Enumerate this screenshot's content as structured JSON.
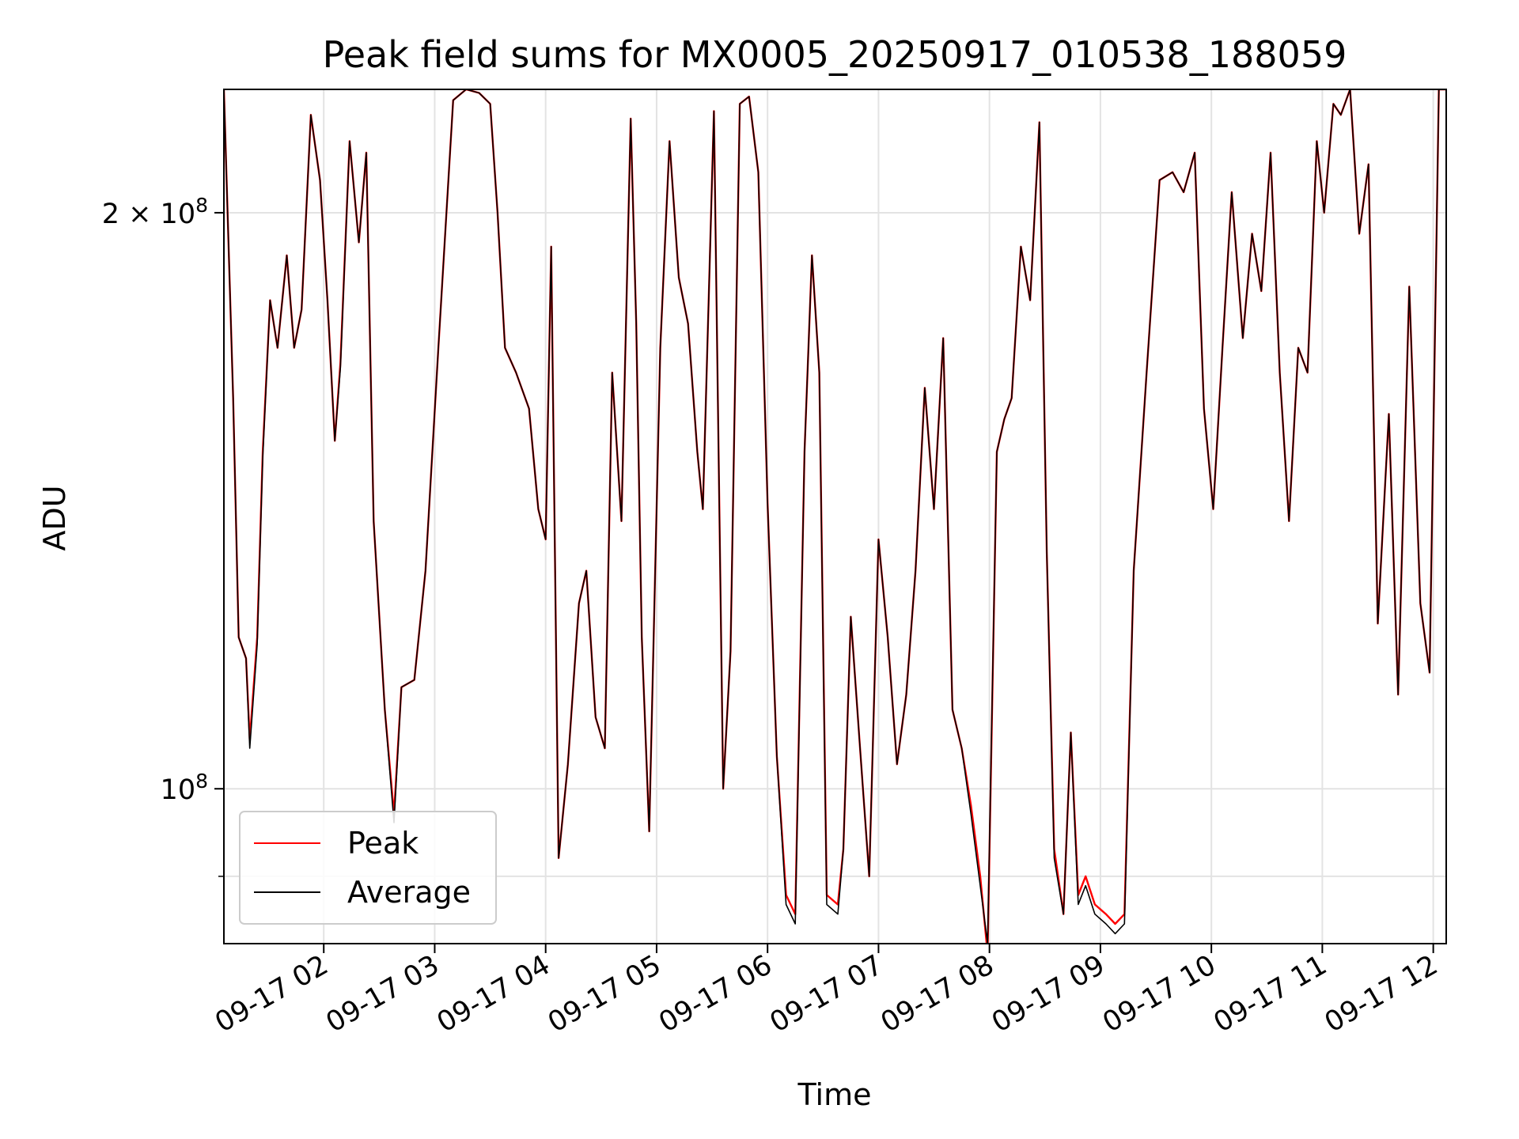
{
  "chart_data": {
    "type": "line",
    "title": "Peak field sums for MX0005_20250917_010538_188059",
    "xlabel": "Time",
    "ylabel": "ADU",
    "y_scale": "log",
    "xlim": [
      "09-17 01:06",
      "09-17 12:07"
    ],
    "ylim": [
      83000000,
      232000000
    ],
    "x_ticks": [
      "09-17 02",
      "09-17 03",
      "09-17 04",
      "09-17 05",
      "09-17 06",
      "09-17 07",
      "09-17 08",
      "09-17 09",
      "09-17 10",
      "09-17 11",
      "09-17 12"
    ],
    "y_ticks": [
      {
        "value": 100000000,
        "label": "10",
        "exp": "8"
      },
      {
        "value": 200000000,
        "label": "2 × 10",
        "exp": "8"
      }
    ],
    "grid": true,
    "legend_position": "lower-left",
    "series": [
      {
        "name": "Peak",
        "color": "#ff0000",
        "x": [
          "09-17 01:06",
          "09-17 01:11",
          "09-17 01:14",
          "09-17 01:18",
          "09-17 01:20",
          "09-17 01:24",
          "09-17 01:27",
          "09-17 01:31",
          "09-17 01:35",
          "09-17 01:40",
          "09-17 01:44",
          "09-17 01:48",
          "09-17 01:53",
          "09-17 01:58",
          "09-17 02:02",
          "09-17 02:06",
          "09-17 02:09",
          "09-17 02:14",
          "09-17 02:19",
          "09-17 02:23",
          "09-17 02:27",
          "09-17 02:33",
          "09-17 02:38",
          "09-17 02:42",
          "09-17 02:49",
          "09-17 02:55",
          "09-17 03:02",
          "09-17 03:10",
          "09-17 03:17",
          "09-17 03:24",
          "09-17 03:30",
          "09-17 03:34",
          "09-17 03:38",
          "09-17 03:44",
          "09-17 03:51",
          "09-17 03:56",
          "09-17 04:00",
          "09-17 04:03",
          "09-17 04:07",
          "09-17 04:12",
          "09-17 04:18",
          "09-17 04:22",
          "09-17 04:27",
          "09-17 04:32",
          "09-17 04:36",
          "09-17 04:41",
          "09-17 04:46",
          "09-17 04:49",
          "09-17 04:52",
          "09-17 04:56",
          "09-17 05:02",
          "09-17 05:07",
          "09-17 05:12",
          "09-17 05:17",
          "09-17 05:22",
          "09-17 05:25",
          "09-17 05:31",
          "09-17 05:36",
          "09-17 05:40",
          "09-17 05:45",
          "09-17 05:50",
          "09-17 05:55",
          "09-17 06:00",
          "09-17 06:05",
          "09-17 06:10",
          "09-17 06:15",
          "09-17 06:20",
          "09-17 06:24",
          "09-17 06:28",
          "09-17 06:32",
          "09-17 06:38",
          "09-17 06:41",
          "09-17 06:45",
          "09-17 06:50",
          "09-17 06:55",
          "09-17 07:00",
          "09-17 07:05",
          "09-17 07:10",
          "09-17 07:15",
          "09-17 07:20",
          "09-17 07:25",
          "09-17 07:30",
          "09-17 07:35",
          "09-17 07:40",
          "09-17 07:45",
          "09-17 07:50",
          "09-17 07:55",
          "09-17 07:59",
          "09-17 08:04",
          "09-17 08:08",
          "09-17 08:12",
          "09-17 08:17",
          "09-17 08:22",
          "09-17 08:27",
          "09-17 08:31",
          "09-17 08:35",
          "09-17 08:40",
          "09-17 08:44",
          "09-17 08:48",
          "09-17 08:52",
          "09-17 08:57",
          "09-17 09:03",
          "09-17 09:08",
          "09-17 09:13",
          "09-17 09:18",
          "09-17 09:25",
          "09-17 09:32",
          "09-17 09:39",
          "09-17 09:45",
          "09-17 09:51",
          "09-17 09:56",
          "09-17 10:01",
          "09-17 10:06",
          "09-17 10:11",
          "09-17 10:17",
          "09-17 10:22",
          "09-17 10:27",
          "09-17 10:32",
          "09-17 10:37",
          "09-17 10:42",
          "09-17 10:47",
          "09-17 10:52",
          "09-17 10:57",
          "09-17 11:01",
          "09-17 11:06",
          "09-17 11:10",
          "09-17 11:15",
          "09-17 11:20",
          "09-17 11:25",
          "09-17 11:30",
          "09-17 11:36",
          "09-17 11:41",
          "09-17 11:47",
          "09-17 11:53",
          "09-17 11:58",
          "09-17 12:03",
          "09-17 12:07"
        ],
        "values": [
          232000000,
          160000000,
          120000000,
          117000000,
          106000000,
          120000000,
          150000000,
          180000000,
          170000000,
          190000000,
          170000000,
          178000000,
          225000000,
          208000000,
          180000000,
          152000000,
          167000000,
          218000000,
          193000000,
          215000000,
          138000000,
          110000000,
          97000000,
          113000000,
          114000000,
          130000000,
          170000000,
          229000000,
          232000000,
          231000000,
          228000000,
          200000000,
          170000000,
          165000000,
          158000000,
          140000000,
          135000000,
          192000000,
          92000000,
          103000000,
          125000000,
          130000000,
          109000000,
          105000000,
          165000000,
          138000000,
          224000000,
          175000000,
          120000000,
          95000000,
          170000000,
          218000000,
          185000000,
          175000000,
          150000000,
          140000000,
          226000000,
          100000000,
          118000000,
          228000000,
          230000000,
          210000000,
          141000000,
          104000000,
          88000000,
          86000000,
          150000000,
          190000000,
          165000000,
          88000000,
          87000000,
          93000000,
          123000000,
          105000000,
          90000000,
          135000000,
          120000000,
          103000000,
          112000000,
          130000000,
          162000000,
          140000000,
          172000000,
          110000000,
          105000000,
          98000000,
          90000000,
          82000000,
          150000000,
          156000000,
          160000000,
          192000000,
          180000000,
          223000000,
          133000000,
          93000000,
          86000000,
          107000000,
          88000000,
          90000000,
          87000000,
          86000000,
          85000000,
          86000000,
          130000000,
          165000000,
          208000000,
          210000000,
          205000000,
          215000000,
          158000000,
          140000000,
          170000000,
          205000000,
          172000000,
          195000000,
          182000000,
          215000000,
          165000000,
          138000000,
          170000000,
          165000000,
          218000000,
          200000000,
          228000000,
          225000000,
          232000000,
          195000000,
          212000000,
          122000000,
          157000000,
          112000000,
          183000000,
          125000000,
          115000000,
          232000000,
          232000000
        ]
      },
      {
        "name": "Average",
        "color": "#000000",
        "x": [
          "09-17 01:06",
          "09-17 01:11",
          "09-17 01:14",
          "09-17 01:18",
          "09-17 01:20",
          "09-17 01:24",
          "09-17 01:27",
          "09-17 01:31",
          "09-17 01:35",
          "09-17 01:40",
          "09-17 01:44",
          "09-17 01:48",
          "09-17 01:53",
          "09-17 01:58",
          "09-17 02:02",
          "09-17 02:06",
          "09-17 02:09",
          "09-17 02:14",
          "09-17 02:19",
          "09-17 02:23",
          "09-17 02:27",
          "09-17 02:33",
          "09-17 02:38",
          "09-17 02:42",
          "09-17 02:49",
          "09-17 02:55",
          "09-17 03:02",
          "09-17 03:10",
          "09-17 03:17",
          "09-17 03:24",
          "09-17 03:30",
          "09-17 03:34",
          "09-17 03:38",
          "09-17 03:44",
          "09-17 03:51",
          "09-17 03:56",
          "09-17 04:00",
          "09-17 04:03",
          "09-17 04:07",
          "09-17 04:12",
          "09-17 04:18",
          "09-17 04:22",
          "09-17 04:27",
          "09-17 04:32",
          "09-17 04:36",
          "09-17 04:41",
          "09-17 04:46",
          "09-17 04:49",
          "09-17 04:52",
          "09-17 04:56",
          "09-17 05:02",
          "09-17 05:07",
          "09-17 05:12",
          "09-17 05:17",
          "09-17 05:22",
          "09-17 05:25",
          "09-17 05:31",
          "09-17 05:36",
          "09-17 05:40",
          "09-17 05:45",
          "09-17 05:50",
          "09-17 05:55",
          "09-17 06:00",
          "09-17 06:05",
          "09-17 06:10",
          "09-17 06:15",
          "09-17 06:20",
          "09-17 06:24",
          "09-17 06:28",
          "09-17 06:32",
          "09-17 06:38",
          "09-17 06:41",
          "09-17 06:45",
          "09-17 06:50",
          "09-17 06:55",
          "09-17 07:00",
          "09-17 07:05",
          "09-17 07:10",
          "09-17 07:15",
          "09-17 07:20",
          "09-17 07:25",
          "09-17 07:30",
          "09-17 07:35",
          "09-17 07:40",
          "09-17 07:45",
          "09-17 07:50",
          "09-17 07:55",
          "09-17 07:59",
          "09-17 08:04",
          "09-17 08:08",
          "09-17 08:12",
          "09-17 08:17",
          "09-17 08:22",
          "09-17 08:27",
          "09-17 08:31",
          "09-17 08:35",
          "09-17 08:40",
          "09-17 08:44",
          "09-17 08:48",
          "09-17 08:52",
          "09-17 08:57",
          "09-17 09:03",
          "09-17 09:08",
          "09-17 09:13",
          "09-17 09:18",
          "09-17 09:25",
          "09-17 09:32",
          "09-17 09:39",
          "09-17 09:45",
          "09-17 09:51",
          "09-17 09:56",
          "09-17 10:01",
          "09-17 10:06",
          "09-17 10:11",
          "09-17 10:17",
          "09-17 10:22",
          "09-17 10:27",
          "09-17 10:32",
          "09-17 10:37",
          "09-17 10:42",
          "09-17 10:47",
          "09-17 10:52",
          "09-17 10:57",
          "09-17 11:01",
          "09-17 11:06",
          "09-17 11:10",
          "09-17 11:15",
          "09-17 11:20",
          "09-17 11:25",
          "09-17 11:30",
          "09-17 11:36",
          "09-17 11:41",
          "09-17 11:47",
          "09-17 11:53",
          "09-17 11:58",
          "09-17 12:03",
          "09-17 12:07"
        ],
        "values": [
          232000000,
          160000000,
          120000000,
          117000000,
          105000000,
          119000000,
          149000000,
          180000000,
          170000000,
          190000000,
          170000000,
          178000000,
          225000000,
          208000000,
          180000000,
          152000000,
          166000000,
          218000000,
          193000000,
          215000000,
          138000000,
          110000000,
          96000000,
          113000000,
          114000000,
          130000000,
          170000000,
          229000000,
          232000000,
          231000000,
          228000000,
          200000000,
          170000000,
          165000000,
          158000000,
          140000000,
          135000000,
          192000000,
          92000000,
          103000000,
          125000000,
          130000000,
          109000000,
          105000000,
          165000000,
          138000000,
          224000000,
          175000000,
          120000000,
          95000000,
          170000000,
          218000000,
          185000000,
          175000000,
          150000000,
          140000000,
          226000000,
          100000000,
          118000000,
          228000000,
          230000000,
          210000000,
          141000000,
          104000000,
          87000000,
          85000000,
          150000000,
          190000000,
          165000000,
          87000000,
          86000000,
          93000000,
          123000000,
          105000000,
          90000000,
          135000000,
          120000000,
          103000000,
          112000000,
          130000000,
          162000000,
          140000000,
          172000000,
          110000000,
          105000000,
          97000000,
          89000000,
          83000000,
          150000000,
          156000000,
          160000000,
          192000000,
          180000000,
          223000000,
          133000000,
          92000000,
          86000000,
          107000000,
          87000000,
          89000000,
          86000000,
          85000000,
          84000000,
          85000000,
          130000000,
          165000000,
          208000000,
          210000000,
          205000000,
          215000000,
          158000000,
          140000000,
          170000000,
          205000000,
          172000000,
          195000000,
          182000000,
          215000000,
          165000000,
          138000000,
          170000000,
          165000000,
          218000000,
          200000000,
          228000000,
          225000000,
          232000000,
          195000000,
          212000000,
          122000000,
          157000000,
          112000000,
          183000000,
          125000000,
          115000000,
          232000000,
          232000000
        ]
      }
    ]
  }
}
